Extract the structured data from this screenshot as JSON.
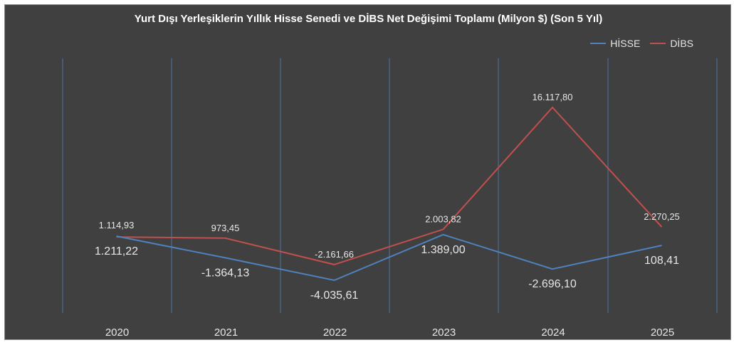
{
  "chart_data": {
    "type": "line",
    "title": "Yurt Dışı Yerleşiklerin Yıllık Hisse Senedi ve DİBS Net Değişimi Toplamı (Milyon $) (Son 5 Yıl)",
    "categories": [
      "2020",
      "2021",
      "2022",
      "2023",
      "2024",
      "2025"
    ],
    "series": [
      {
        "name": "HİSSE",
        "color": "#4f81bd",
        "values": [
          1211.22,
          -1364.13,
          -4035.61,
          1389.0,
          -2696.1,
          108.41
        ],
        "labels": [
          "1.211,22",
          "-1.364,13",
          "-4.035,61",
          "1.389,00",
          "-2.696,10",
          "108,41"
        ]
      },
      {
        "name": "DİBS",
        "color": "#c0504d",
        "values": [
          1114.93,
          973.45,
          -2161.66,
          2003.82,
          16117.8,
          2270.25
        ],
        "labels": [
          "1.114,93",
          "973,45",
          "-2.161,66",
          "2.003,82",
          "16.117,80",
          "2.270,25"
        ]
      }
    ],
    "grid": "vertical",
    "legend_position": "top-right",
    "background": "#404040"
  }
}
